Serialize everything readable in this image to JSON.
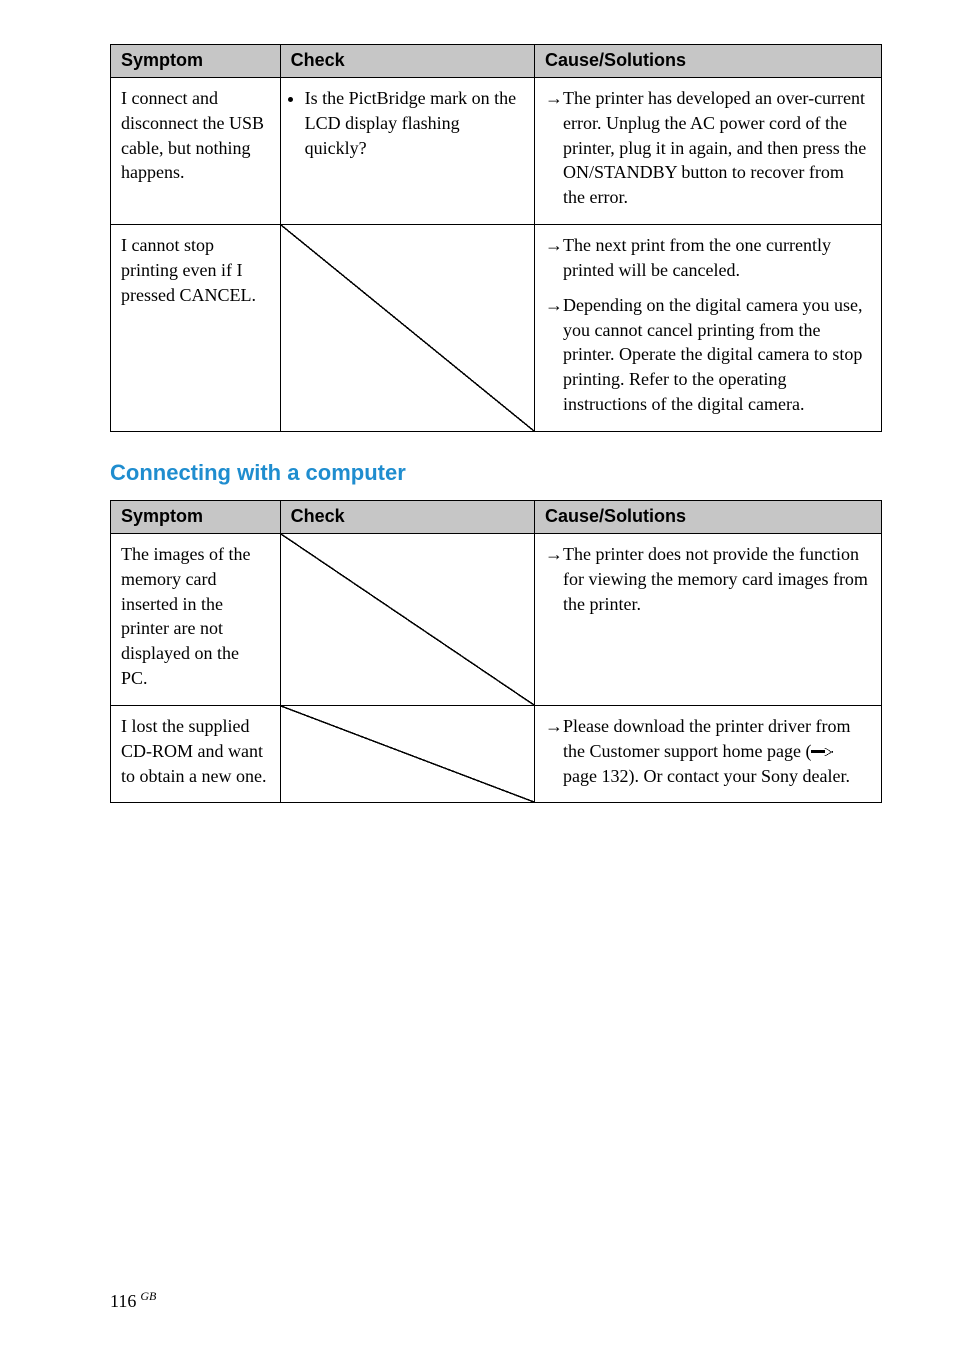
{
  "table1": {
    "headers": {
      "c1": "Symptom",
      "c2": "Check",
      "c3": "Cause/Solutions"
    },
    "rows": [
      {
        "symptom": "I connect and disconnect the USB cable, but nothing happens.",
        "check_items": [
          "Is the PictBridge mark on the LCD display flashing quickly?"
        ],
        "empty_check": false,
        "solutions": [
          "The printer has developed an over-current error.  Unplug the AC power cord of the printer, plug it in again, and then press the ON/STANDBY button to recover from the error."
        ]
      },
      {
        "symptom": "I cannot stop printing even if I pressed CANCEL.",
        "check_items": [],
        "empty_check": true,
        "solutions": [
          "The next print from the one currently printed will be canceled.",
          "Depending on the digital camera you use, you cannot cancel printing from the printer.  Operate the digital camera to stop printing.  Refer to the operating instructions of the digital camera."
        ]
      }
    ]
  },
  "section_heading": "Connecting with a computer",
  "table2": {
    "headers": {
      "c1": "Symptom",
      "c2": "Check",
      "c3": "Cause/Solutions"
    },
    "rows": [
      {
        "symptom": "The images of the memory card inserted in the printer are not displayed on the PC.",
        "check_items": [],
        "empty_check": true,
        "solutions": [
          {
            "text_before": "The printer does not provide the function for viewing the memory card images from the printer.",
            "page_ref": null,
            "text_after": ""
          }
        ]
      },
      {
        "symptom": "I lost the supplied CD-ROM and want to obtain a new one.",
        "check_items": [],
        "empty_check": true,
        "solutions": [
          {
            "text_before": "Please download the printer driver from the Customer support home page (",
            "page_ref": "page 132). Or contact your Sony dealer.",
            "text_after": ""
          }
        ]
      }
    ]
  },
  "page_number": "116",
  "page_number_suffix": "GB"
}
